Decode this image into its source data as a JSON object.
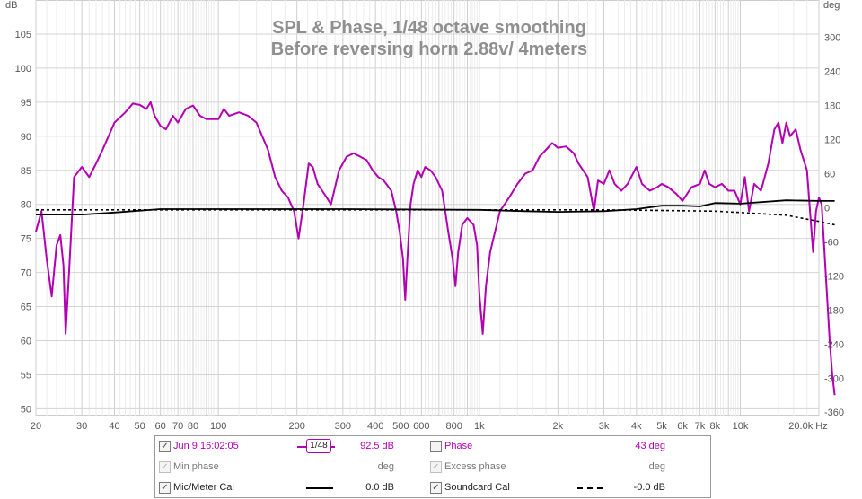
{
  "chart_data": {
    "type": "line",
    "title": "SPL & Phase, 1/48 octave smoothing",
    "subtitle": "Before reversing horn 2.88v/ 4meters",
    "x_scale": "log",
    "xlim": [
      20,
      20000
    ],
    "x_unit": "Hz",
    "x_ticks": [
      20,
      30,
      40,
      50,
      60,
      70,
      80,
      100,
      200,
      300,
      400,
      500,
      600,
      800,
      1000,
      2000,
      3000,
      4000,
      5000,
      6000,
      7000,
      8000,
      10000,
      20000
    ],
    "x_tick_labels": [
      "20",
      "30",
      "40",
      "50",
      "60",
      "70",
      "80",
      "100",
      "200",
      "300",
      "400",
      "500",
      "600",
      "800",
      "1k",
      "2k",
      "3k",
      "4k",
      "5k",
      "6k",
      "7k",
      "8k",
      "10k",
      "20.0k Hz"
    ],
    "y_left": {
      "unit": "dB",
      "lim": [
        49,
        110
      ],
      "ticks": [
        50,
        55,
        60,
        65,
        70,
        75,
        80,
        85,
        90,
        95,
        100,
        105
      ]
    },
    "y_right": {
      "unit": "deg",
      "lim": [
        -366,
        366
      ],
      "ticks": [
        -360,
        -300,
        -240,
        -180,
        -120,
        -60,
        0,
        60,
        120,
        180,
        240,
        300
      ]
    },
    "grid": true,
    "series": [
      {
        "name": "Jun 9 16:02:05",
        "axis": "left",
        "color": "#b300b3",
        "points": [
          [
            20,
            76
          ],
          [
            21,
            79
          ],
          [
            22,
            72
          ],
          [
            23,
            66.5
          ],
          [
            24,
            74
          ],
          [
            24.8,
            75.5
          ],
          [
            25.5,
            71
          ],
          [
            26,
            61
          ],
          [
            26.8,
            70
          ],
          [
            28,
            84
          ],
          [
            30,
            85.5
          ],
          [
            32,
            84
          ],
          [
            34,
            86
          ],
          [
            36,
            88
          ],
          [
            40,
            92
          ],
          [
            44,
            93.5
          ],
          [
            47,
            94.8
          ],
          [
            50,
            94.6
          ],
          [
            53,
            94
          ],
          [
            55,
            95
          ],
          [
            57,
            93
          ],
          [
            60,
            91.5
          ],
          [
            63,
            91
          ],
          [
            67,
            93
          ],
          [
            70,
            92
          ],
          [
            75,
            94
          ],
          [
            80,
            94.5
          ],
          [
            85,
            93
          ],
          [
            90,
            92.5
          ],
          [
            100,
            92.5
          ],
          [
            105,
            94
          ],
          [
            110,
            93
          ],
          [
            120,
            93.5
          ],
          [
            130,
            93
          ],
          [
            140,
            92
          ],
          [
            155,
            88
          ],
          [
            165,
            84
          ],
          [
            175,
            82
          ],
          [
            185,
            81
          ],
          [
            195,
            79
          ],
          [
            203,
            75
          ],
          [
            212,
            80
          ],
          [
            222,
            86
          ],
          [
            230,
            85.5
          ],
          [
            240,
            83
          ],
          [
            250,
            82
          ],
          [
            260,
            81
          ],
          [
            270,
            80
          ],
          [
            290,
            85
          ],
          [
            310,
            87
          ],
          [
            330,
            87.5
          ],
          [
            350,
            87
          ],
          [
            370,
            86.5
          ],
          [
            390,
            85
          ],
          [
            410,
            84
          ],
          [
            430,
            83.5
          ],
          [
            460,
            82
          ],
          [
            480,
            79
          ],
          [
            495,
            76
          ],
          [
            510,
            72
          ],
          [
            520,
            66
          ],
          [
            530,
            72
          ],
          [
            545,
            80
          ],
          [
            560,
            83
          ],
          [
            580,
            85
          ],
          [
            600,
            84
          ],
          [
            620,
            85.5
          ],
          [
            650,
            85
          ],
          [
            680,
            84
          ],
          [
            720,
            82
          ],
          [
            760,
            76
          ],
          [
            790,
            72
          ],
          [
            810,
            68
          ],
          [
            830,
            73
          ],
          [
            860,
            77
          ],
          [
            900,
            78
          ],
          [
            950,
            77
          ],
          [
            980,
            74
          ],
          [
            1000,
            67
          ],
          [
            1030,
            61
          ],
          [
            1060,
            68
          ],
          [
            1100,
            73
          ],
          [
            1200,
            79
          ],
          [
            1300,
            81
          ],
          [
            1400,
            83
          ],
          [
            1500,
            84.5
          ],
          [
            1600,
            85
          ],
          [
            1700,
            87
          ],
          [
            1800,
            88
          ],
          [
            1900,
            89
          ],
          [
            2000,
            88.3
          ],
          [
            2150,
            88.5
          ],
          [
            2300,
            87.5
          ],
          [
            2400,
            86
          ],
          [
            2600,
            84
          ],
          [
            2750,
            79
          ],
          [
            2850,
            83.5
          ],
          [
            3000,
            83
          ],
          [
            3150,
            85
          ],
          [
            3300,
            83
          ],
          [
            3500,
            82
          ],
          [
            3700,
            83
          ],
          [
            4000,
            85.5
          ],
          [
            4200,
            83
          ],
          [
            4500,
            82
          ],
          [
            4800,
            82.5
          ],
          [
            5000,
            83
          ],
          [
            5300,
            82.5
          ],
          [
            5700,
            81.5
          ],
          [
            6000,
            80.5
          ],
          [
            6500,
            82.5
          ],
          [
            7000,
            83
          ],
          [
            7300,
            85
          ],
          [
            7600,
            83
          ],
          [
            8000,
            82.5
          ],
          [
            8500,
            83
          ],
          [
            9000,
            82
          ],
          [
            9500,
            82
          ],
          [
            10000,
            80
          ],
          [
            10400,
            84
          ],
          [
            10800,
            79
          ],
          [
            11300,
            83
          ],
          [
            12000,
            82
          ],
          [
            12800,
            86
          ],
          [
            13500,
            91
          ],
          [
            14000,
            92
          ],
          [
            14500,
            89
          ],
          [
            15000,
            92
          ],
          [
            15500,
            90
          ],
          [
            16300,
            91
          ],
          [
            17000,
            88
          ],
          [
            18000,
            85
          ],
          [
            19000,
            73
          ],
          [
            19500,
            79
          ],
          [
            20000,
            81
          ],
          [
            20500,
            80
          ],
          [
            21000,
            73
          ],
          [
            22000,
            60
          ],
          [
            22500,
            55
          ],
          [
            23000,
            52
          ]
        ]
      },
      {
        "name": "Phase",
        "axis": "right",
        "color": "#b300b3",
        "visible": false,
        "value": "43 deg",
        "points": []
      },
      {
        "name": "Min phase",
        "axis": "right",
        "visible": false,
        "enabled": false,
        "points": []
      },
      {
        "name": "Excess phase",
        "axis": "right",
        "visible": false,
        "enabled": false,
        "points": []
      },
      {
        "name": "Mic/Meter Cal",
        "axis": "left",
        "color": "#000000",
        "style": "solid",
        "points": [
          [
            20,
            78.5
          ],
          [
            30,
            78.5
          ],
          [
            40,
            78.8
          ],
          [
            60,
            79.3
          ],
          [
            100,
            79.3
          ],
          [
            300,
            79.3
          ],
          [
            1000,
            79.2
          ],
          [
            1500,
            79
          ],
          [
            2000,
            78.9
          ],
          [
            3000,
            79
          ],
          [
            4000,
            79.3
          ],
          [
            5000,
            79.8
          ],
          [
            6000,
            79.8
          ],
          [
            7000,
            79.7
          ],
          [
            8000,
            80.2
          ],
          [
            10000,
            80.1
          ],
          [
            15000,
            80.6
          ],
          [
            20000,
            80.5
          ],
          [
            23000,
            80.5
          ]
        ]
      },
      {
        "name": "Soundcard Cal",
        "axis": "left",
        "color": "#000000",
        "style": "dashed",
        "points": [
          [
            20,
            79.2
          ],
          [
            100,
            79.2
          ],
          [
            1000,
            79.2
          ],
          [
            3000,
            79.2
          ],
          [
            5000,
            79.1
          ],
          [
            8000,
            79
          ],
          [
            10000,
            78.8
          ],
          [
            15000,
            78.4
          ],
          [
            20000,
            77.5
          ],
          [
            23000,
            77.0
          ]
        ]
      }
    ]
  },
  "legend": {
    "row1": {
      "name": "Jun 9 16:02:05",
      "smoothing": "1/48",
      "value": "92.5 dB",
      "checked": true,
      "right_name": "Phase",
      "right_value": "43 deg",
      "right_checked": false
    },
    "row2": {
      "name": "Min phase",
      "unit": "deg",
      "right_name": "Excess phase",
      "right_unit": "deg"
    },
    "row3": {
      "name": "Mic/Meter Cal",
      "value": "0.0 dB",
      "checked": true,
      "right_name": "Soundcard Cal",
      "right_value": "-0.0 dB",
      "right_checked": true
    }
  },
  "colors": {
    "spl": "#b300b3",
    "grid": "#d0d0d0",
    "axis_text": "#555555"
  }
}
